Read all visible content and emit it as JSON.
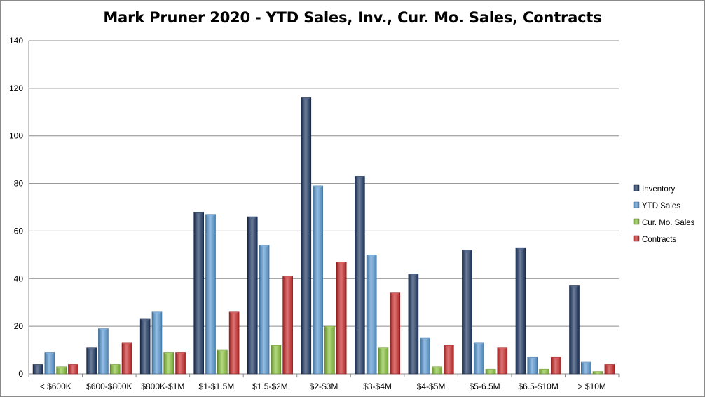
{
  "chart_data": {
    "type": "bar",
    "title": "Mark Pruner 2020 - YTD Sales, Inv., Cur. Mo. Sales, Contracts",
    "categories": [
      "< $600K",
      "$600-$800K",
      "$800K-$1M",
      "$1-$1.5M",
      "$1.5-$2M",
      "$2-$3M",
      "$3-$4M",
      "$4-$5M",
      "$5-6.5M",
      "$6.5-$10M",
      "> $10M"
    ],
    "series": [
      {
        "name": "Inventory",
        "color": "#1f3864",
        "values": [
          4,
          11,
          23,
          68,
          66,
          116,
          83,
          42,
          52,
          53,
          37
        ]
      },
      {
        "name": "YTD Sales",
        "color": "#5b9bd5",
        "values": [
          9,
          19,
          26,
          67,
          54,
          79,
          50,
          15,
          13,
          7,
          5
        ]
      },
      {
        "name": "Cur. Mo. Sales",
        "color": "#8cc43f",
        "values": [
          3,
          4,
          9,
          10,
          12,
          20,
          11,
          3,
          2,
          2,
          1
        ]
      },
      {
        "name": "Contracts",
        "color": "#cc2a2a",
        "values": [
          4,
          13,
          9,
          26,
          41,
          47,
          34,
          12,
          11,
          7,
          4
        ]
      }
    ],
    "ylim": [
      0,
      140
    ],
    "yticks": [
      0,
      20,
      40,
      60,
      80,
      100,
      120,
      140
    ],
    "grid": true,
    "legend": "right",
    "xlabel": "",
    "ylabel": ""
  }
}
